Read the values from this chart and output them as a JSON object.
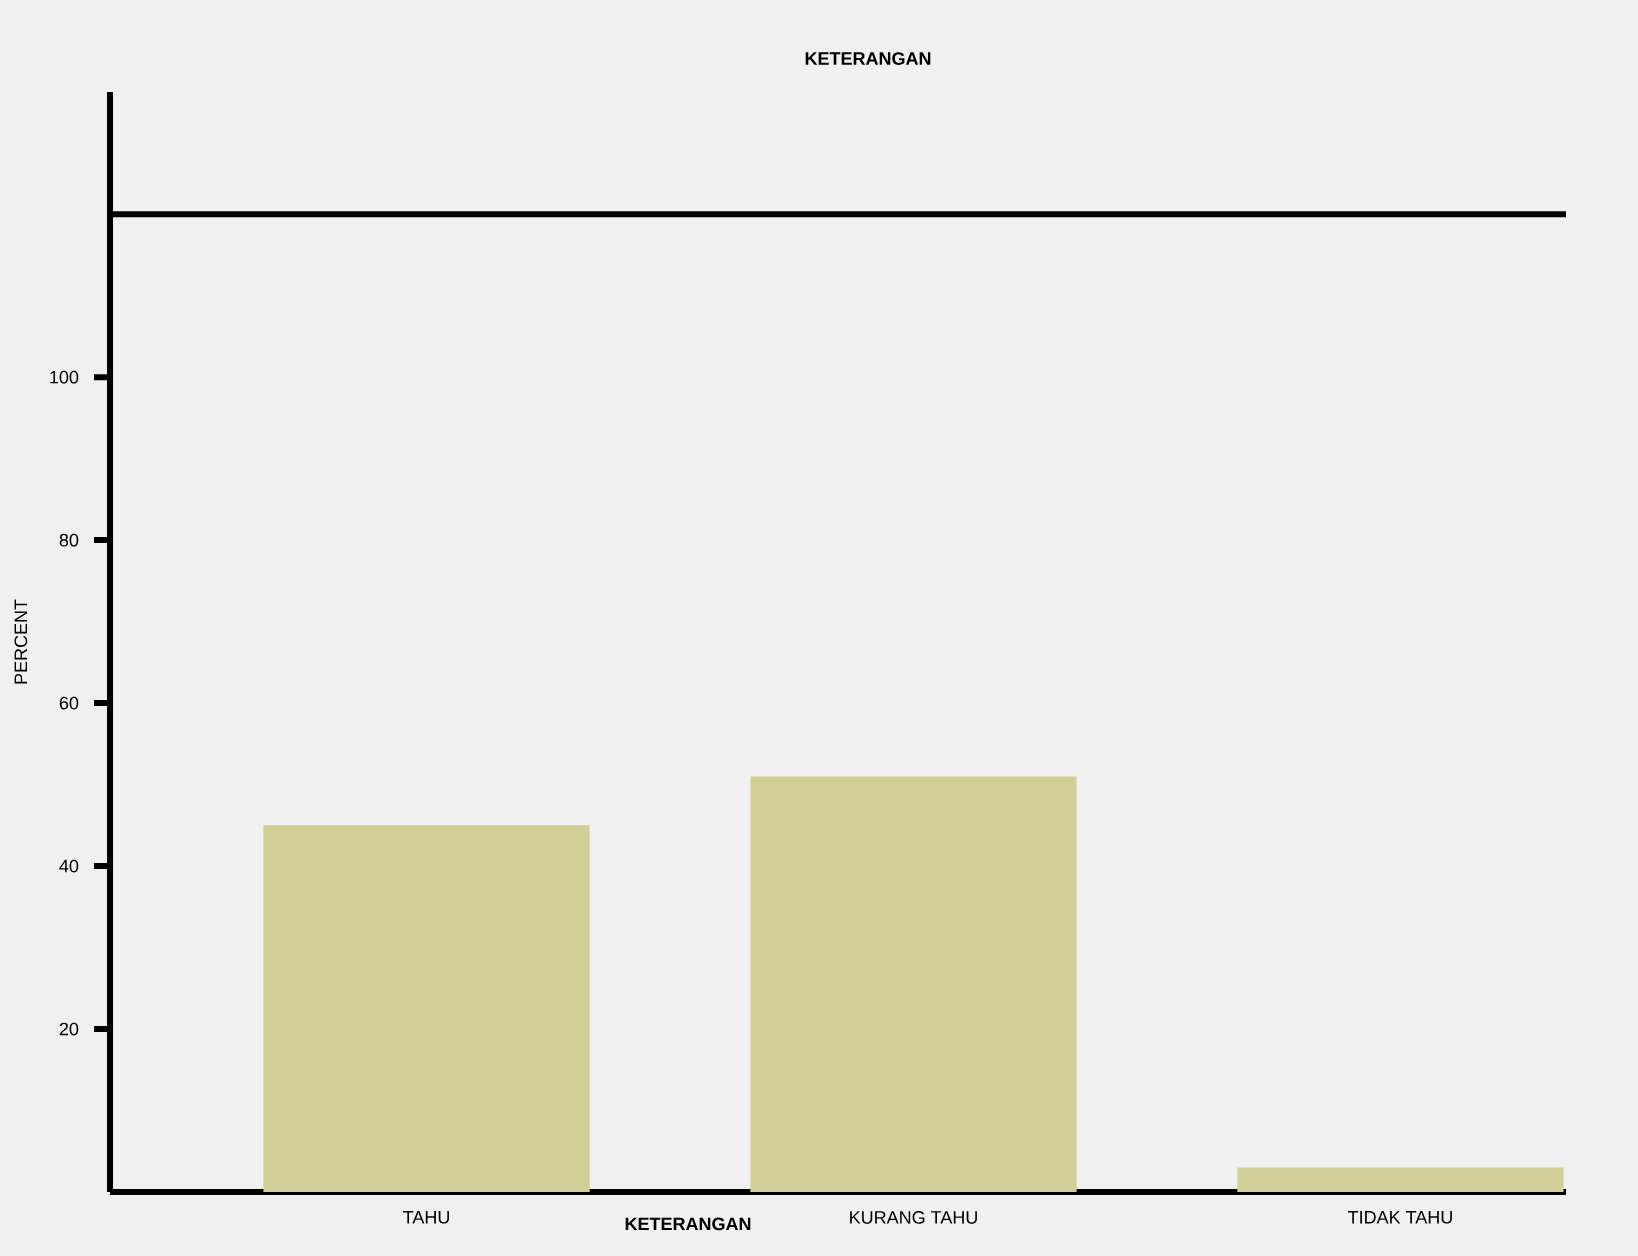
{
  "chart_data": {
    "type": "bar",
    "title": "KETERANGAN",
    "xlabel": "KETERANGAN",
    "ylabel": "PERCENT",
    "categories": [
      "TAHU",
      "KURANG TAHU",
      "TIDAK TAHU"
    ],
    "values": [
      45,
      51,
      3
    ],
    "color": "#d2cf96",
    "ylim": [
      0,
      135
    ],
    "yticks": [
      20,
      40,
      60,
      80,
      100
    ],
    "ref_lines": [
      {
        "axis": "y",
        "value": 120,
        "color": "#000000",
        "line_style": "solid"
      }
    ]
  }
}
